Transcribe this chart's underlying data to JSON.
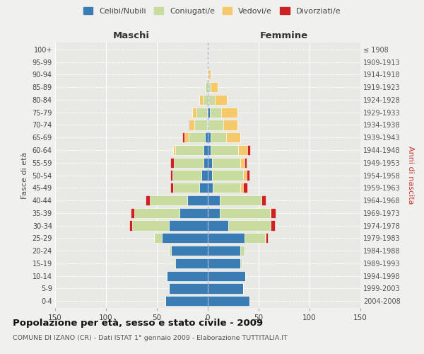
{
  "age_groups": [
    "0-4",
    "5-9",
    "10-14",
    "15-19",
    "20-24",
    "25-29",
    "30-34",
    "35-39",
    "40-44",
    "45-49",
    "50-54",
    "55-59",
    "60-64",
    "65-69",
    "70-74",
    "75-79",
    "80-84",
    "85-89",
    "90-94",
    "95-99",
    "100+"
  ],
  "birth_years": [
    "2004-2008",
    "1999-2003",
    "1994-1998",
    "1989-1993",
    "1984-1988",
    "1979-1983",
    "1974-1978",
    "1969-1973",
    "1964-1968",
    "1959-1963",
    "1954-1958",
    "1949-1953",
    "1944-1948",
    "1939-1943",
    "1934-1938",
    "1929-1933",
    "1924-1928",
    "1919-1923",
    "1914-1918",
    "1909-1913",
    "≤ 1908"
  ],
  "maschi": {
    "celibi": [
      42,
      38,
      40,
      32,
      36,
      45,
      38,
      28,
      20,
      8,
      6,
      4,
      4,
      3,
      1,
      1,
      0,
      0,
      0,
      0,
      0
    ],
    "coniugati": [
      0,
      0,
      0,
      1,
      2,
      8,
      36,
      44,
      37,
      26,
      29,
      29,
      28,
      16,
      12,
      10,
      5,
      3,
      1,
      0,
      0
    ],
    "vedovi": [
      0,
      0,
      0,
      0,
      0,
      0,
      0,
      0,
      0,
      0,
      0,
      0,
      2,
      4,
      5,
      4,
      3,
      0,
      0,
      0,
      0
    ],
    "divorziati": [
      0,
      0,
      0,
      0,
      0,
      0,
      3,
      4,
      4,
      3,
      2,
      4,
      0,
      2,
      1,
      0,
      0,
      0,
      0,
      0,
      0
    ]
  },
  "femmine": {
    "nubili": [
      41,
      35,
      37,
      32,
      32,
      36,
      20,
      12,
      12,
      5,
      4,
      4,
      3,
      3,
      1,
      2,
      1,
      1,
      0,
      0,
      0
    ],
    "coniugate": [
      0,
      0,
      0,
      1,
      4,
      20,
      42,
      49,
      40,
      27,
      31,
      28,
      27,
      15,
      14,
      11,
      6,
      2,
      1,
      0,
      0
    ],
    "vedove": [
      0,
      0,
      0,
      0,
      0,
      1,
      0,
      1,
      1,
      3,
      3,
      4,
      9,
      14,
      14,
      16,
      12,
      7,
      2,
      1,
      0
    ],
    "divorziate": [
      0,
      0,
      0,
      0,
      0,
      2,
      4,
      5,
      4,
      4,
      3,
      2,
      3,
      0,
      0,
      0,
      0,
      0,
      0,
      0,
      0
    ]
  },
  "colors": {
    "celibi": "#3a7db5",
    "coniugati": "#c8dca0",
    "vedovi": "#f5c86a",
    "divorziati": "#cc2222"
  },
  "legend_labels": [
    "Celibi/Nubili",
    "Coniugati/e",
    "Vedovi/e",
    "Divorziati/e"
  ],
  "title": "Popolazione per età, sesso e stato civile - 2009",
  "subtitle": "COMUNE DI IZANO (CR) - Dati ISTAT 1° gennaio 2009 - Elaborazione TUTTITALIA.IT",
  "xlabel_left": "Maschi",
  "xlabel_right": "Femmine",
  "ylabel_left": "Fasce di età",
  "ylabel_right": "Anni di nascita",
  "xlim": 150,
  "bg_color": "#f0f0ee",
  "plot_bg": "#e8e8e4"
}
